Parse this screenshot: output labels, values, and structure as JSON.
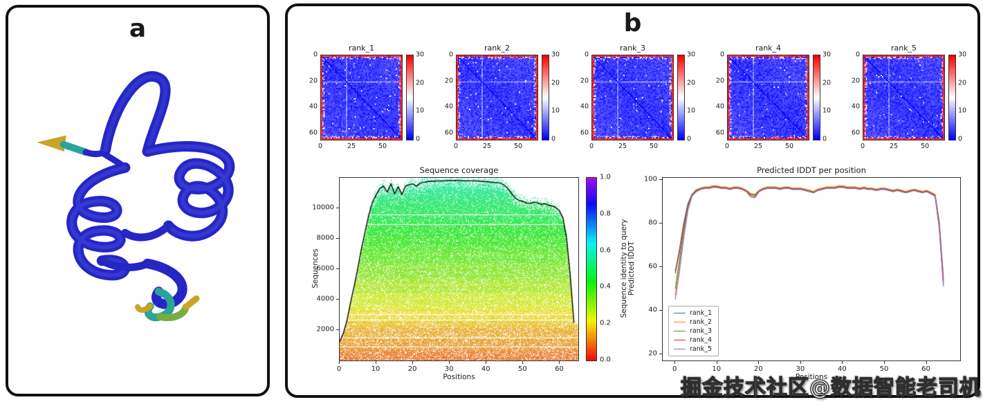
{
  "panel_a": {
    "label": "a",
    "description": "3D ribbon diagram of a predicted protein structure; predominantly blue helices and loops with short orange, teal, green and yellow segments at the chain termini"
  },
  "panel_b": {
    "label": "b"
  },
  "watermark": "掘金技术社区@数据智能老司机",
  "chart_data": [
    {
      "id": "predicted-distance-matrices",
      "type": "heatmap",
      "panels": [
        {
          "title": "rank_1"
        },
        {
          "title": "rank_2"
        },
        {
          "title": "rank_3"
        },
        {
          "title": "rank_4"
        },
        {
          "title": "rank_5"
        }
      ],
      "n_residues": 65,
      "x_ticks": [
        0,
        25,
        50
      ],
      "y_ticks": [
        0,
        20,
        40,
        60
      ],
      "vmin": 0,
      "vmax": 30,
      "colorbar_ticks": [
        0,
        10,
        20,
        30
      ],
      "colormap": "bwr",
      "pattern": {
        "interior_value_range": [
          0,
          6
        ],
        "border_value_range": [
          26,
          30
        ],
        "diagonal_value": 0,
        "light_band_rows": [
          20
        ],
        "speckle_margin_rows": 3
      }
    },
    {
      "id": "sequence-coverage",
      "type": "area",
      "title": "Sequence coverage",
      "xlabel": "Positions",
      "ylabel": "Sequences",
      "xlim": [
        0,
        65
      ],
      "ylim": [
        0,
        12000
      ],
      "x_ticks": [
        0,
        10,
        20,
        30,
        40,
        50,
        60
      ],
      "y_ticks": [
        2000,
        4000,
        6000,
        8000,
        10000
      ],
      "identity_range_displayed": [
        0.1,
        0.58
      ],
      "colorbar": {
        "label": "Sequence identity to query",
        "ticks": [
          "0.0",
          "0.2",
          "0.4",
          "0.6",
          "0.8",
          "1.0"
        ],
        "colormap": "rainbow_r"
      },
      "coverage_line": [
        [
          0,
          1200
        ],
        [
          1,
          1750
        ],
        [
          2,
          2600
        ],
        [
          3,
          3800
        ],
        [
          4,
          4900
        ],
        [
          5,
          6100
        ],
        [
          6,
          7400
        ],
        [
          7,
          8500
        ],
        [
          8,
          9600
        ],
        [
          9,
          10400
        ],
        [
          10,
          10900
        ],
        [
          11,
          11300
        ],
        [
          12,
          11450
        ],
        [
          13,
          11050
        ],
        [
          14,
          11600
        ],
        [
          15,
          10950
        ],
        [
          16,
          11400
        ],
        [
          17,
          10900
        ],
        [
          18,
          11450
        ],
        [
          19,
          11550
        ],
        [
          20,
          11600
        ],
        [
          21,
          11450
        ],
        [
          22,
          11650
        ],
        [
          23,
          11700
        ],
        [
          24,
          11750
        ],
        [
          26,
          11780
        ],
        [
          28,
          11800
        ],
        [
          30,
          11820
        ],
        [
          32,
          11820
        ],
        [
          34,
          11800
        ],
        [
          36,
          11800
        ],
        [
          38,
          11780
        ],
        [
          40,
          11750
        ],
        [
          42,
          11700
        ],
        [
          44,
          11650
        ],
        [
          45,
          11500
        ],
        [
          46,
          11280
        ],
        [
          47,
          10950
        ],
        [
          48,
          10650
        ],
        [
          49,
          10500
        ],
        [
          50,
          10450
        ],
        [
          51,
          10350
        ],
        [
          52,
          10300
        ],
        [
          53,
          10400
        ],
        [
          54,
          10350
        ],
        [
          55,
          10250
        ],
        [
          56,
          10300
        ],
        [
          57,
          10200
        ],
        [
          58,
          10150
        ],
        [
          59,
          10050
        ],
        [
          60,
          9850
        ],
        [
          61,
          9350
        ],
        [
          62,
          8000
        ],
        [
          63,
          5500
        ],
        [
          64,
          2450
        ]
      ]
    },
    {
      "id": "predicted-lddt",
      "type": "line",
      "title": "Predicted IDDT per position",
      "xlabel": "Positions",
      "ylabel": "Predicted IDDT",
      "xlim": [
        -3,
        68
      ],
      "ylim": [
        17,
        101
      ],
      "x_ticks": [
        0,
        10,
        20,
        30,
        40,
        50,
        60
      ],
      "y_ticks": [
        20,
        40,
        60,
        80,
        100
      ],
      "legend_position": "lower left",
      "x": [
        0,
        1,
        2,
        3,
        4,
        5,
        6,
        7,
        8,
        9,
        10,
        11,
        12,
        13,
        14,
        15,
        16,
        17,
        18,
        19,
        20,
        21,
        22,
        23,
        24,
        25,
        26,
        27,
        28,
        29,
        30,
        31,
        32,
        33,
        34,
        35,
        36,
        37,
        38,
        39,
        40,
        41,
        42,
        43,
        44,
        45,
        46,
        47,
        48,
        49,
        50,
        51,
        52,
        53,
        54,
        55,
        56,
        57,
        58,
        59,
        60,
        61,
        62,
        63,
        64
      ],
      "series": [
        {
          "name": "rank_1",
          "color": "#1f77b4",
          "values": [
            58,
            68,
            80,
            89,
            93.5,
            95.5,
            96,
            96.5,
            96.5,
            97,
            97,
            96.5,
            96.5,
            96,
            96.5,
            96.5,
            96,
            95,
            93.5,
            93.2,
            95,
            96,
            96.5,
            96.5,
            96.5,
            96,
            96.5,
            96.5,
            96,
            96,
            96,
            95.5,
            95,
            94.5,
            95.5,
            96,
            96.5,
            96.5,
            96.5,
            97,
            97,
            96.5,
            96.5,
            96.5,
            96,
            96.5,
            96,
            96,
            95.5,
            96,
            96,
            95.5,
            95,
            95.5,
            95,
            94.5,
            95,
            95.5,
            95,
            94.5,
            95,
            94.2,
            93.2,
            81,
            55
          ]
        },
        {
          "name": "rank_2",
          "color": "#ff7f0e",
          "values": [
            47,
            61,
            76,
            87.5,
            93.2,
            95.6,
            96.3,
            96.8,
            96.8,
            97.3,
            97.3,
            96.8,
            96.8,
            96.3,
            96.8,
            96.8,
            96.3,
            95.3,
            93.8,
            93.4,
            95.3,
            96.3,
            96.8,
            96.8,
            96.8,
            96.3,
            96.8,
            96.8,
            96.3,
            96.3,
            96.3,
            95.8,
            95.3,
            94.8,
            95.8,
            96.3,
            96.8,
            96.8,
            96.8,
            97.3,
            97.3,
            96.8,
            96.8,
            96.8,
            96.3,
            96.8,
            96.3,
            96.3,
            95.8,
            96.3,
            96.3,
            95.8,
            95.3,
            95.8,
            95.3,
            94.8,
            95.3,
            95.8,
            95.3,
            94.8,
            95.3,
            94.4,
            93.4,
            80,
            54
          ]
        },
        {
          "name": "rank_3",
          "color": "#2ca02c",
          "values": [
            50,
            63,
            77,
            88,
            93.1,
            95.1,
            95.9,
            96.4,
            96.4,
            96.9,
            96.9,
            96.4,
            96.4,
            95.9,
            96.4,
            96.4,
            95.9,
            94.9,
            93.4,
            93,
            94.9,
            95.9,
            96.4,
            96.4,
            96.4,
            95.9,
            96.4,
            96.4,
            95.9,
            95.9,
            95.9,
            95.4,
            94.9,
            94.4,
            95.4,
            95.9,
            96.4,
            96.4,
            96.4,
            96.9,
            96.9,
            96.4,
            96.4,
            96.4,
            95.9,
            96.4,
            95.9,
            95.9,
            95.4,
            95.9,
            95.9,
            95.4,
            94.9,
            95.4,
            94.9,
            94.4,
            94.9,
            95.4,
            94.9,
            94.4,
            94.9,
            94,
            93,
            79.5,
            52
          ]
        },
        {
          "name": "rank_4",
          "color": "#d62728",
          "values": [
            57,
            67,
            79,
            88.5,
            92.9,
            94.9,
            95.8,
            96.3,
            96.3,
            96.8,
            96.8,
            96.3,
            96.3,
            95.8,
            96.3,
            96.3,
            95.8,
            94.8,
            92.8,
            92.4,
            94.8,
            95.8,
            96.3,
            96.3,
            96.3,
            95.8,
            96.3,
            96.3,
            95.8,
            95.8,
            95.8,
            95.3,
            94.8,
            94.3,
            95.3,
            95.8,
            96.3,
            96.3,
            96.3,
            96.8,
            96.8,
            96.3,
            96.3,
            96.3,
            95.8,
            96.3,
            95.8,
            95.8,
            95.3,
            95.8,
            95.8,
            95.3,
            94.8,
            95.3,
            94.8,
            94.3,
            94.8,
            95.3,
            94.8,
            94.3,
            94.8,
            93.8,
            92.8,
            79,
            53
          ]
        },
        {
          "name": "rank_5",
          "color": "#9467bd",
          "values": [
            45,
            58,
            73,
            86,
            92.6,
            94.6,
            95.6,
            96.1,
            96.1,
            96.6,
            96.6,
            96.1,
            96.1,
            95.6,
            96.1,
            96.1,
            95.6,
            94.6,
            92.2,
            91.8,
            94.6,
            95.6,
            96.1,
            96.1,
            96.1,
            95.6,
            96.1,
            96.1,
            95.6,
            95.6,
            95.6,
            95.1,
            94.6,
            94.1,
            95.1,
            95.6,
            96.1,
            96.1,
            96.1,
            96.6,
            96.6,
            96.1,
            96.1,
            96.1,
            95.6,
            96.1,
            95.6,
            95.6,
            95.1,
            95.6,
            95.6,
            95.1,
            94.6,
            95.1,
            94.6,
            94.1,
            94.6,
            95.1,
            94.6,
            94.1,
            94.6,
            93.6,
            92.6,
            78,
            51
          ]
        }
      ]
    }
  ]
}
